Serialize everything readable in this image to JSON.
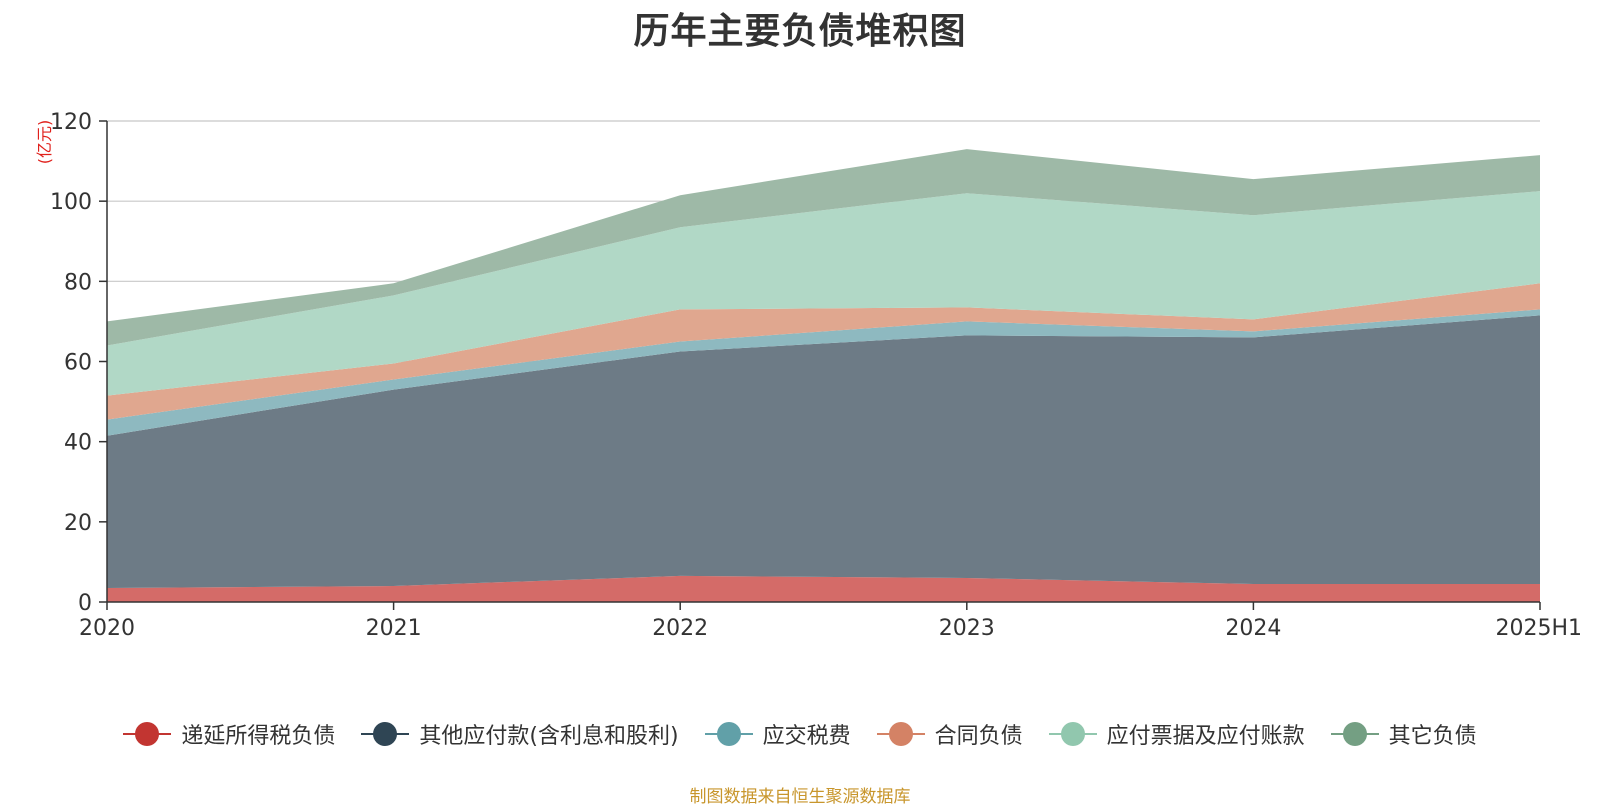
{
  "title": "历年主要负债堆积图",
  "unit_label": "(亿元)",
  "source_note": "制图数据来自恒生聚源数据库",
  "chart_data": {
    "type": "area",
    "stacked": true,
    "title": "历年主要负债堆积图",
    "ylabel": "(亿元)",
    "xlabel": "",
    "x": [
      "2020",
      "2021",
      "2022",
      "2023",
      "2024",
      "2025H1"
    ],
    "ylim": [
      0,
      120
    ],
    "yticks": [
      0,
      20,
      40,
      60,
      80,
      100,
      120
    ],
    "grid": true,
    "legend_position": "bottom",
    "series": [
      {
        "name": "递延所得税负债",
        "color": "#c23531",
        "fill": "#d46b68",
        "values": [
          3.5,
          4.0,
          6.5,
          6.0,
          4.5,
          4.5
        ]
      },
      {
        "name": "其他应付款(含利息和股利)",
        "color": "#2f4554",
        "fill": "#6d7b86",
        "values": [
          38.0,
          49.0,
          56.0,
          60.5,
          61.5,
          67.0
        ]
      },
      {
        "name": "应交税费",
        "color": "#61a0a8",
        "fill": "#8eb9c0",
        "values": [
          4.0,
          2.5,
          2.5,
          3.5,
          1.5,
          1.5
        ]
      },
      {
        "name": "合同负债",
        "color": "#d48265",
        "fill": "#e0a78f",
        "values": [
          6.0,
          4.0,
          8.0,
          3.5,
          3.0,
          6.5
        ]
      },
      {
        "name": "应付票据及应付账款",
        "color": "#91c7ae",
        "fill": "#b1d8c6",
        "values": [
          12.5,
          17.0,
          20.5,
          28.5,
          26.0,
          23.0
        ]
      },
      {
        "name": "其它负债",
        "color": "#749f83",
        "fill": "#9eb9a7",
        "values": [
          6.0,
          3.0,
          8.0,
          11.0,
          9.0,
          9.0
        ]
      }
    ]
  }
}
